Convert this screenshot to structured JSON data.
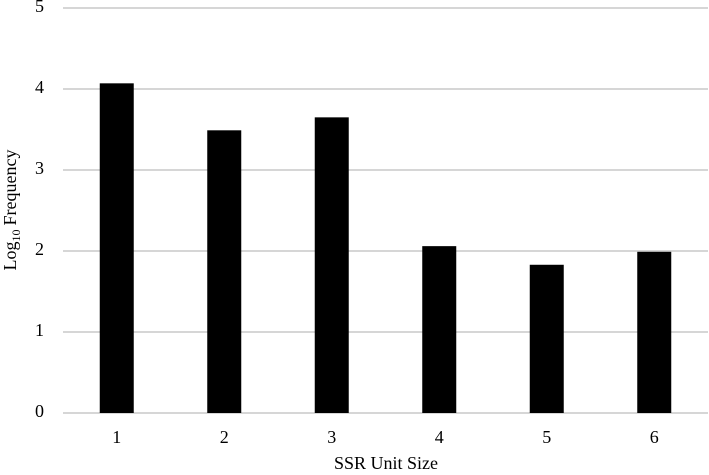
{
  "chart_data": {
    "type": "bar",
    "x_label": "SSR Unit Size",
    "y_label": {
      "base": "Log",
      "subscript": "10",
      "rest": "Frequency"
    },
    "categories": [
      "1",
      "2",
      "3",
      "4",
      "5",
      "6"
    ],
    "values": [
      4.07,
      3.49,
      3.65,
      2.06,
      1.83,
      1.99
    ],
    "color": "#000000",
    "ylim": [
      0,
      5
    ],
    "yticks": [
      0,
      1,
      2,
      3,
      4,
      5
    ],
    "grid": true
  }
}
